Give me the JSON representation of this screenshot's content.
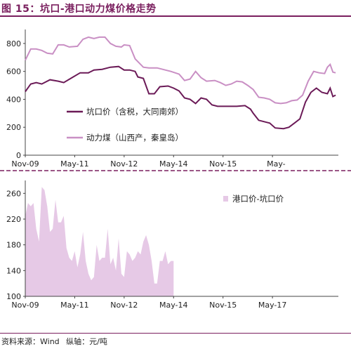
{
  "header": {
    "title": "图 15：坑口-港口动力煤价格走势"
  },
  "footer": {
    "source": "资料来源：Wind",
    "unit": "纵轴：元/吨"
  },
  "colors": {
    "dark": "#6b1a57",
    "light": "#c98fc4",
    "fill": "#e6c9e6",
    "accent": "#7a1f5e"
  },
  "chart_data": [
    {
      "type": "line",
      "x_ticks": [
        "Nov-09",
        "May-11",
        "Nov-12",
        "May-14",
        "Nov-15",
        "May-"
      ],
      "x_range": [
        "Nov-09",
        "Jul-17"
      ],
      "ylim": [
        0,
        900
      ],
      "y_ticks": [
        0,
        200,
        400,
        600,
        800
      ],
      "grid": false,
      "legend": "center",
      "series": [
        {
          "name": "坑口价（含税，大同南郊）",
          "color": "#6b1a57",
          "points": [
            [
              0,
              455
            ],
            [
              2,
              510
            ],
            [
              4,
              520
            ],
            [
              6,
              510
            ],
            [
              9,
              540
            ],
            [
              12,
              530
            ],
            [
              14,
              520
            ],
            [
              17,
              555
            ],
            [
              20,
              590
            ],
            [
              23,
              590
            ],
            [
              25,
              610
            ],
            [
              28,
              615
            ],
            [
              31,
              630
            ],
            [
              34,
              635
            ],
            [
              36,
              610
            ],
            [
              38,
              610
            ],
            [
              40,
              600
            ],
            [
              41,
              560
            ],
            [
              43,
              550
            ],
            [
              45,
              440
            ],
            [
              47,
              440
            ],
            [
              49,
              490
            ],
            [
              52,
              495
            ],
            [
              54,
              480
            ],
            [
              56,
              460
            ],
            [
              58,
              410
            ],
            [
              60,
              400
            ],
            [
              62,
              370
            ],
            [
              64,
              410
            ],
            [
              66,
              400
            ],
            [
              68,
              360
            ],
            [
              70,
              350
            ],
            [
              73,
              350
            ],
            [
              77,
              350
            ],
            [
              80,
              355
            ],
            [
              82,
              330
            ],
            [
              83,
              300
            ],
            [
              85,
              250
            ],
            [
              87,
              240
            ],
            [
              89,
              230
            ],
            [
              91,
              195
            ],
            [
              94,
              190
            ],
            [
              96,
              200
            ],
            [
              98,
              230
            ],
            [
              100,
              260
            ],
            [
              102,
              380
            ],
            [
              104,
              450
            ],
            [
              106,
              480
            ],
            [
              108,
              450
            ],
            [
              110,
              440
            ],
            [
              111,
              480
            ],
            [
              112,
              420
            ],
            [
              113,
              430
            ]
          ]
        },
        {
          "name": "动力煤（山西产，秦皇岛）",
          "color": "#c98fc4",
          "points": [
            [
              0,
              680
            ],
            [
              2,
              760
            ],
            [
              4,
              760
            ],
            [
              6,
              750
            ],
            [
              8,
              730
            ],
            [
              10,
              725
            ],
            [
              12,
              790
            ],
            [
              14,
              790
            ],
            [
              16,
              775
            ],
            [
              19,
              780
            ],
            [
              21,
              830
            ],
            [
              23,
              845
            ],
            [
              25,
              835
            ],
            [
              27,
              845
            ],
            [
              29,
              845
            ],
            [
              31,
              800
            ],
            [
              33,
              780
            ],
            [
              35,
              775
            ],
            [
              36,
              790
            ],
            [
              38,
              785
            ],
            [
              40,
              690
            ],
            [
              43,
              630
            ],
            [
              45,
              625
            ],
            [
              48,
              625
            ],
            [
              51,
              610
            ],
            [
              53,
              600
            ],
            [
              56,
              580
            ],
            [
              58,
              535
            ],
            [
              60,
              545
            ],
            [
              62,
              600
            ],
            [
              64,
              555
            ],
            [
              66,
              530
            ],
            [
              69,
              535
            ],
            [
              71,
              520
            ],
            [
              73,
              500
            ],
            [
              75,
              510
            ],
            [
              77,
              530
            ],
            [
              79,
              525
            ],
            [
              81,
              500
            ],
            [
              83,
              470
            ],
            [
              85,
              415
            ],
            [
              87,
              410
            ],
            [
              89,
              400
            ],
            [
              91,
              375
            ],
            [
              93,
              370
            ],
            [
              95,
              375
            ],
            [
              97,
              390
            ],
            [
              99,
              395
            ],
            [
              101,
              430
            ],
            [
              103,
              530
            ],
            [
              105,
              600
            ],
            [
              107,
              590
            ],
            [
              109,
              585
            ],
            [
              110,
              630
            ],
            [
              111,
              650
            ],
            [
              112,
              595
            ],
            [
              113,
              590
            ]
          ]
        }
      ]
    },
    {
      "type": "area",
      "x_ticks": [
        "Nov-09",
        "May-11",
        "Nov-12",
        "May-14",
        "Nov-15",
        "May-17"
      ],
      "x_range": [
        "Nov-09",
        "Jul-17"
      ],
      "ylim": [
        100,
        280
      ],
      "y_ticks": [
        100,
        140,
        180,
        220,
        260
      ],
      "grid": false,
      "legend": "top-right",
      "series": [
        {
          "name": "港口价-坑口价",
          "color": "#e6c9e6",
          "points": [
            [
              0,
              225
            ],
            [
              1,
              245
            ],
            [
              2,
              240
            ],
            [
              3,
              245
            ],
            [
              4,
              205
            ],
            [
              5,
              185
            ],
            [
              6,
              270
            ],
            [
              7,
              265
            ],
            [
              8,
              240
            ],
            [
              9,
              200
            ],
            [
              10,
              205
            ],
            [
              11,
              250
            ],
            [
              12,
              215
            ],
            [
              13,
              215
            ],
            [
              14,
              225
            ],
            [
              15,
              175
            ],
            [
              16,
              160
            ],
            [
              17,
              155
            ],
            [
              18,
              170
            ],
            [
              19,
              145
            ],
            [
              20,
              165
            ],
            [
              21,
              200
            ],
            [
              22,
              155
            ],
            [
              23,
              135
            ],
            [
              24,
              125
            ],
            [
              25,
              130
            ],
            [
              26,
              180
            ],
            [
              27,
              155
            ],
            [
              28,
              160
            ],
            [
              29,
              160
            ],
            [
              30,
              205
            ],
            [
              31,
              150
            ],
            [
              32,
              160
            ],
            [
              33,
              140
            ],
            [
              34,
              190
            ],
            [
              35,
              135
            ],
            [
              36,
              130
            ],
            [
              37,
              170
            ],
            [
              38,
              165
            ],
            [
              39,
              155
            ],
            [
              40,
              160
            ],
            [
              41,
              170
            ],
            [
              42,
              165
            ],
            [
              43,
              185
            ],
            [
              44,
              195
            ],
            [
              45,
              180
            ],
            [
              46,
              155
            ],
            [
              47,
              120
            ],
            [
              48,
              120
            ],
            [
              49,
              155
            ],
            [
              50,
              155
            ],
            [
              51,
              170
            ],
            [
              52,
              150
            ],
            [
              53,
              155
            ],
            [
              54,
              155
            ]
          ]
        }
      ]
    }
  ]
}
